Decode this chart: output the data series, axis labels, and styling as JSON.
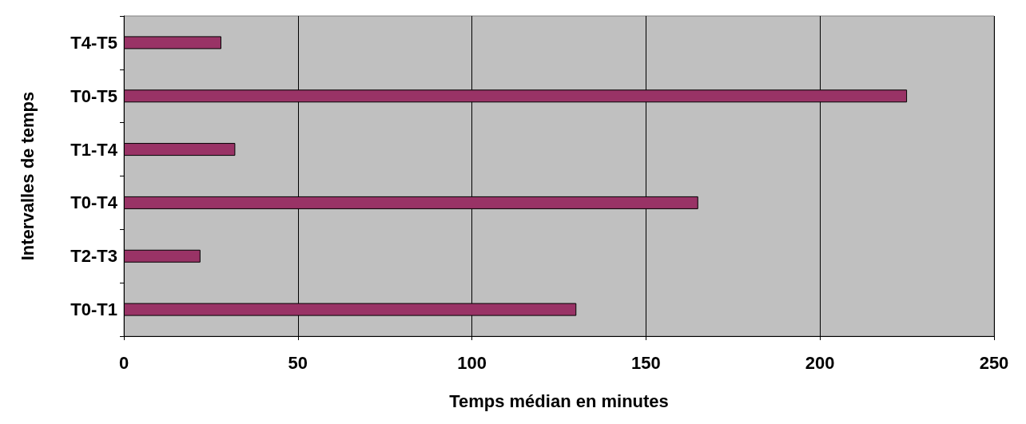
{
  "chart_data": {
    "type": "bar",
    "orientation": "horizontal",
    "xlabel": "Temps médian en minutes",
    "ylabel": "Intervalles de temps",
    "categories": [
      "T4-T5",
      "T0-T5",
      "T1-T4",
      "T0-T4",
      "T2-T3",
      "T0-T1"
    ],
    "values": [
      28,
      225,
      32,
      165,
      22,
      130
    ],
    "color": "#993366",
    "xlim": [
      0,
      250
    ],
    "xticks": [
      0,
      50,
      100,
      150,
      200,
      250
    ],
    "grid": "x"
  }
}
